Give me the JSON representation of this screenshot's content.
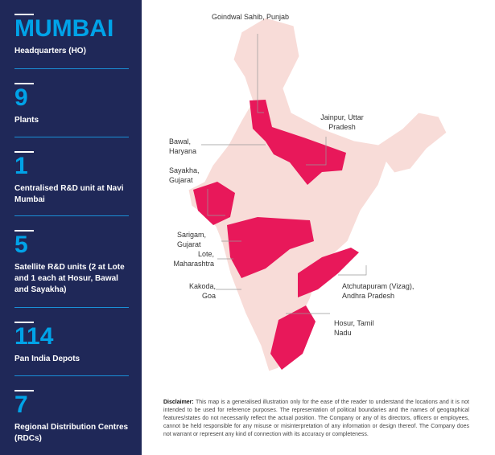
{
  "sidebar": {
    "stats": [
      {
        "value": "MUMBAI",
        "label": "Headquarters (HO)"
      },
      {
        "value": "9",
        "label": "Plants"
      },
      {
        "value": "1",
        "label": "Centralised R&D unit at Navi Mumbai"
      },
      {
        "value": "5",
        "label": "Satellite R&D units (2 at Lote and 1 each at Hosur, Bawal and Sayakha)"
      },
      {
        "value": "114",
        "label": "Pan India Depots"
      },
      {
        "value": "7",
        "label": "Regional Distribution Centres (RDCs)"
      }
    ]
  },
  "map": {
    "colors": {
      "land": "#f8dcd8",
      "highlight": "#e8185a"
    },
    "labels": [
      "Goindwal Sahib, Punjab",
      "Jainpur, Uttar Pradesh",
      "Bawal, Haryana",
      "Sayakha, Gujarat",
      "Sarigam, Gujarat",
      "Lote, Maharashtra",
      "Kakoda, Goa",
      "Atchutapuram (Vizag), Andhra Pradesh",
      "Hosur, Tamil Nadu"
    ]
  },
  "disclaimer": {
    "title": "Disclaimer:",
    "text": " This map is a generalised illustration only for the ease of the reader to understand the locations and it is not intended to be used for reference purposes. The representation of political boundaries and the names of geographical features/states do not necessarily reflect the actual position. The Company or any of its directors, officers or employees, cannot be held responsible for any misuse or misinterpretation of any information or design thereof. The Company does not warrant or represent any kind of connection with its accuracy or completeness."
  }
}
